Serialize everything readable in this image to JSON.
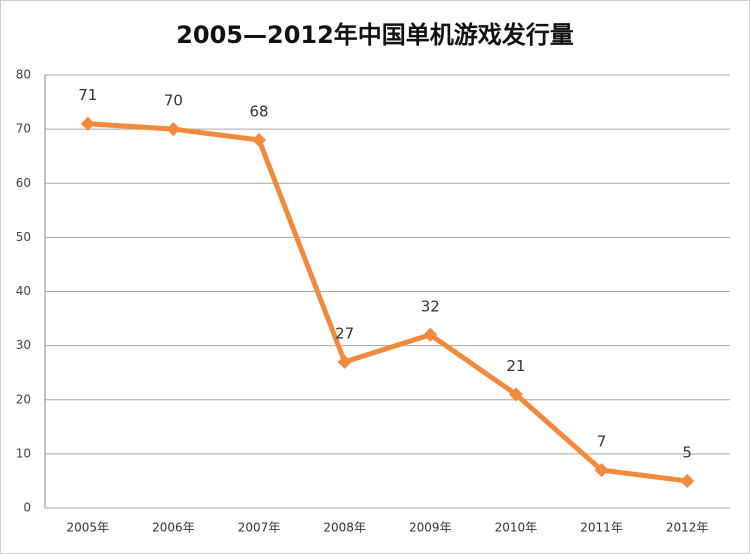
{
  "chart_data": {
    "type": "line",
    "title": "2005—2012年中国单机游戏发行量",
    "categories": [
      "2005年",
      "2006年",
      "2007年",
      "2008年",
      "2009年",
      "2010年",
      "2011年",
      "2012年"
    ],
    "series": [
      {
        "color": "#f28a3c",
        "values": [
          71,
          70,
          68,
          27,
          32,
          21,
          7,
          5
        ]
      }
    ],
    "ylim": [
      0,
      80
    ],
    "yticks": [
      0,
      10,
      20,
      30,
      40,
      50,
      60,
      70,
      80
    ],
    "grid": true
  }
}
